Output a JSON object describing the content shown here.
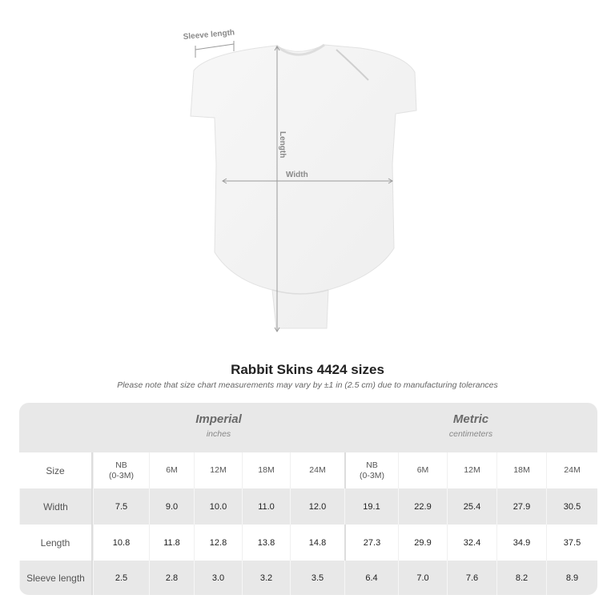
{
  "diagram": {
    "labels": {
      "sleeve": "Sleeve length",
      "length": "Length",
      "width": "Width"
    }
  },
  "title": "Rabbit Skins 4424 sizes",
  "note": "Please note that size chart measurements may vary by ±1 in (2.5 cm) due to manufacturing tolerances",
  "table": {
    "groups": [
      {
        "name": "Imperial",
        "unit": "inches"
      },
      {
        "name": "Metric",
        "unit": "centimeters"
      }
    ],
    "size_label": "Size",
    "sizes": [
      "NB\n(0-3M)",
      "6M",
      "12M",
      "18M",
      "24M",
      "NB\n(0-3M)",
      "6M",
      "12M",
      "18M",
      "24M"
    ],
    "rows": [
      {
        "label": "Width",
        "values": [
          "7.5",
          "9.0",
          "10.0",
          "11.0",
          "12.0",
          "19.1",
          "22.9",
          "25.4",
          "27.9",
          "30.5"
        ]
      },
      {
        "label": "Length",
        "values": [
          "10.8",
          "11.8",
          "12.8",
          "13.8",
          "14.8",
          "27.3",
          "29.9",
          "32.4",
          "34.9",
          "37.5"
        ]
      },
      {
        "label": "Sleeve length",
        "values": [
          "2.5",
          "2.8",
          "3.0",
          "3.2",
          "3.5",
          "6.4",
          "7.0",
          "7.6",
          "8.2",
          "8.9"
        ]
      }
    ]
  },
  "colors": {
    "header_bg": "#e8e8e8",
    "text": "#222222",
    "muted": "#6a6a6a"
  }
}
